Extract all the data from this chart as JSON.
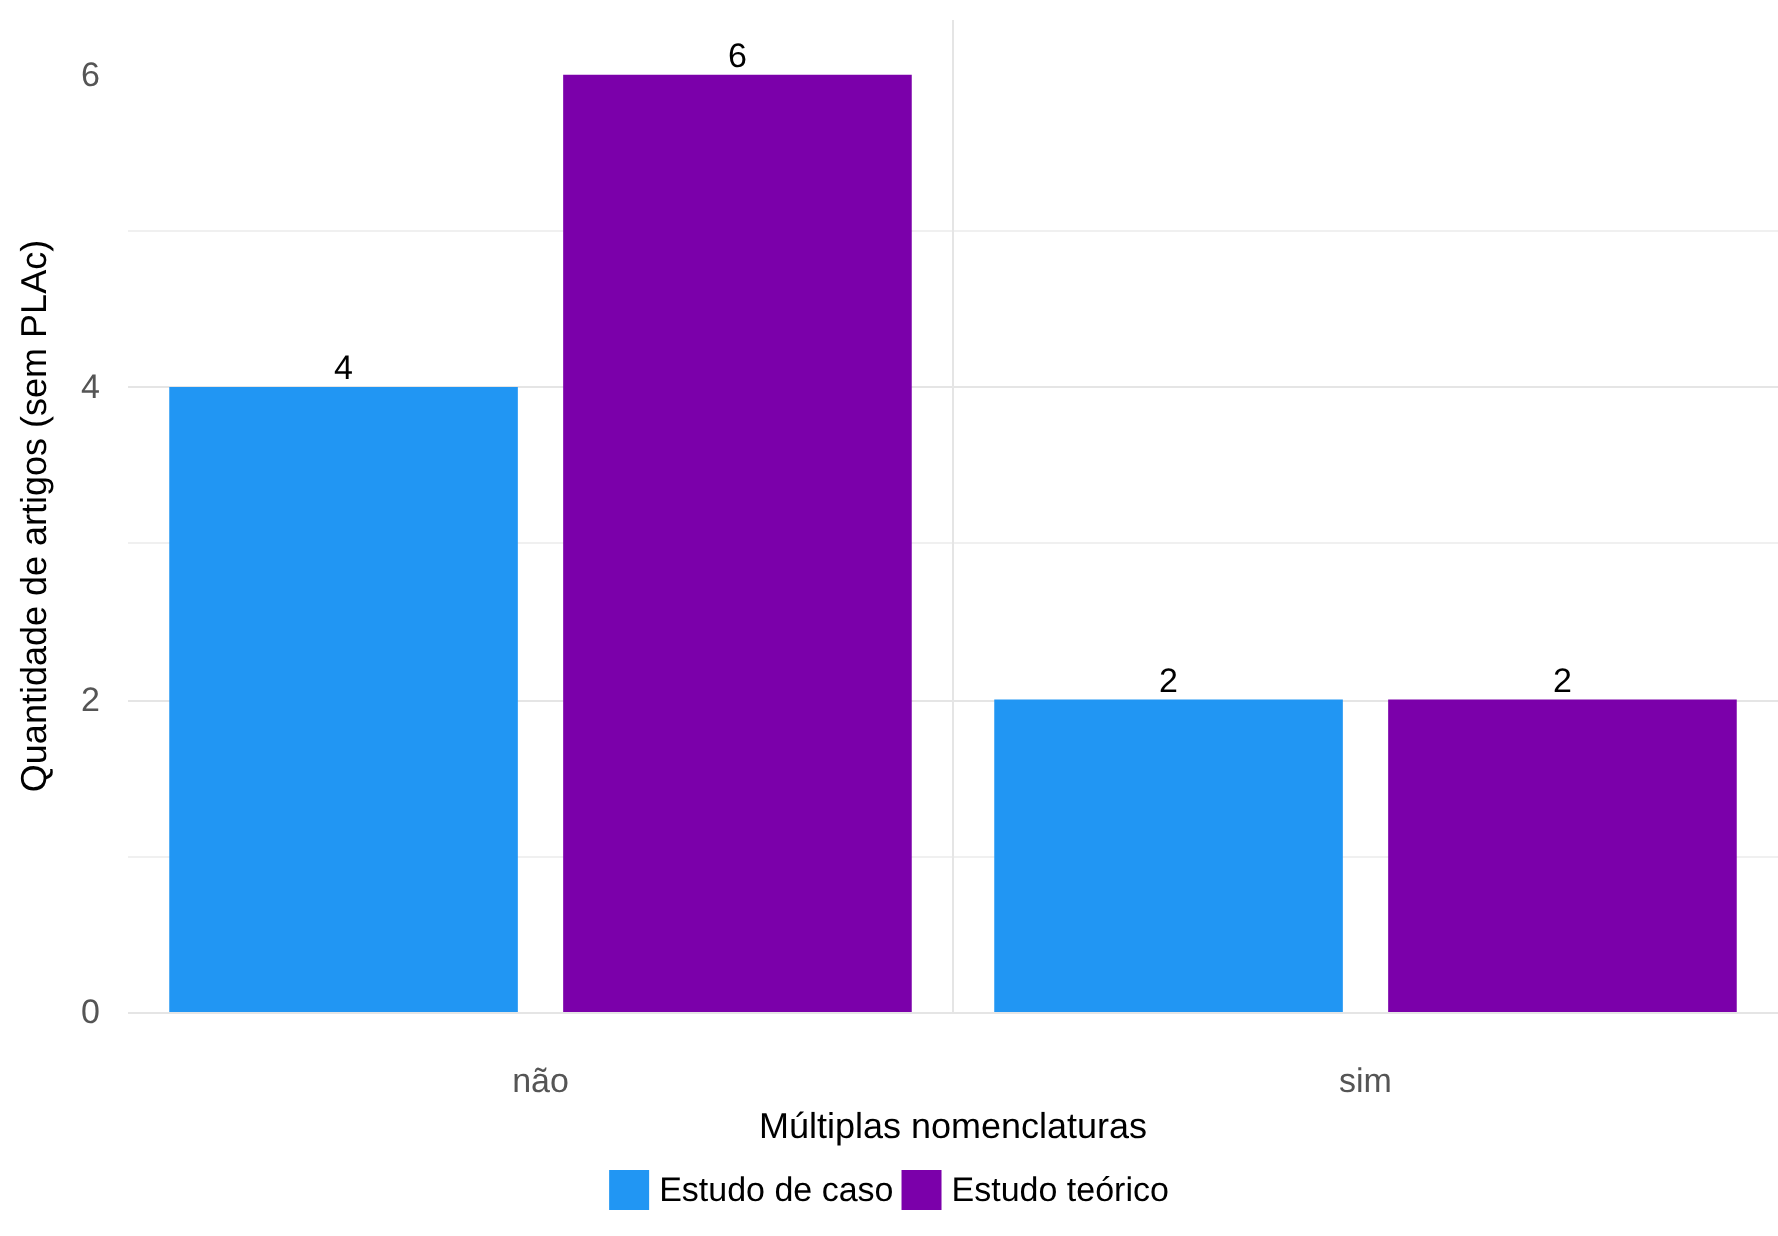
{
  "chart_data": {
    "type": "bar",
    "xlabel": "Múltiplas nomenclaturas",
    "ylabel": "Quantidade de artigos (sem PLAc)",
    "categories": [
      "não",
      "sim"
    ],
    "series": [
      {
        "name": "Estudo de caso",
        "color": "#2196f3",
        "values": [
          4,
          2
        ]
      },
      {
        "name": "Estudo teórico",
        "color": "#7b00aa",
        "values": [
          6,
          2
        ]
      }
    ],
    "ylim": [
      0,
      6.35
    ],
    "yticks": [
      0,
      2,
      4,
      6
    ],
    "grid": true,
    "legend": "bottom",
    "data_labels": true
  }
}
